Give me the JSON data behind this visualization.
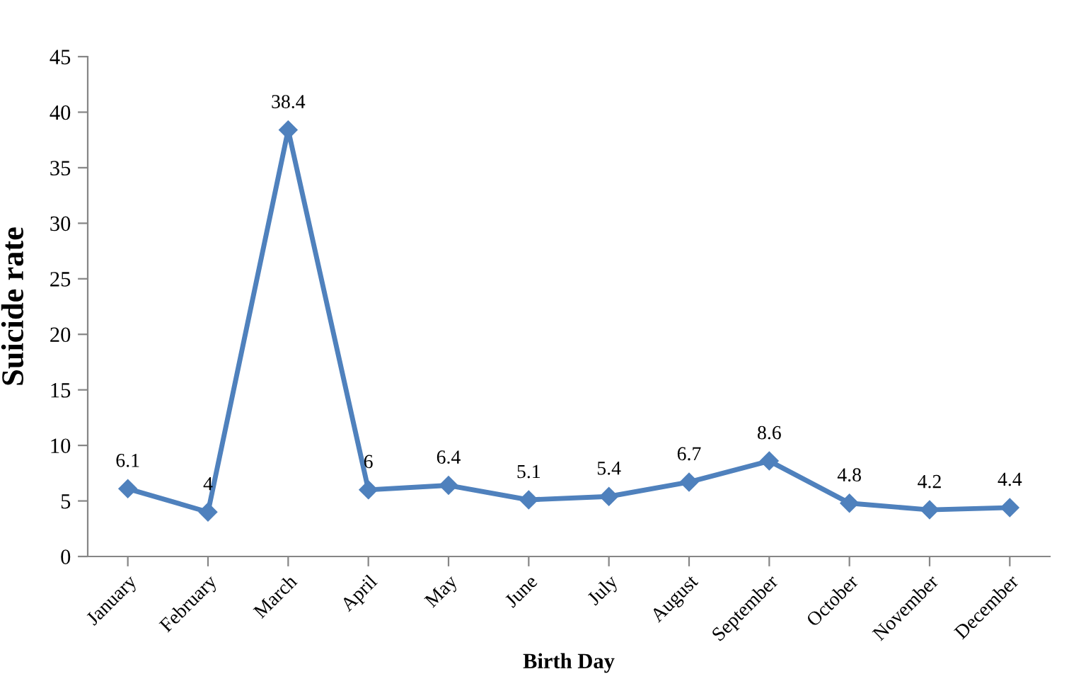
{
  "chart_data": {
    "type": "line",
    "xlabel": "Birth Day",
    "ylabel": "Suicide rate",
    "categories": [
      "January",
      "February",
      "March",
      "April",
      "May",
      "June",
      "July",
      "August",
      "September",
      "October",
      "November",
      "December"
    ],
    "series": [
      {
        "color": "#4f81bd",
        "values": [
          6.1,
          4,
          38.4,
          6,
          6.4,
          5.1,
          5.4,
          6.7,
          8.6,
          4.8,
          4.2,
          4.4
        ]
      }
    ],
    "ylim": [
      0,
      45
    ],
    "yticks": [
      0,
      5,
      10,
      15,
      20,
      25,
      30,
      35,
      40,
      45
    ],
    "marker": "diamond",
    "line_style": "solid",
    "data_labels": true,
    "grid": false,
    "legend": false
  }
}
